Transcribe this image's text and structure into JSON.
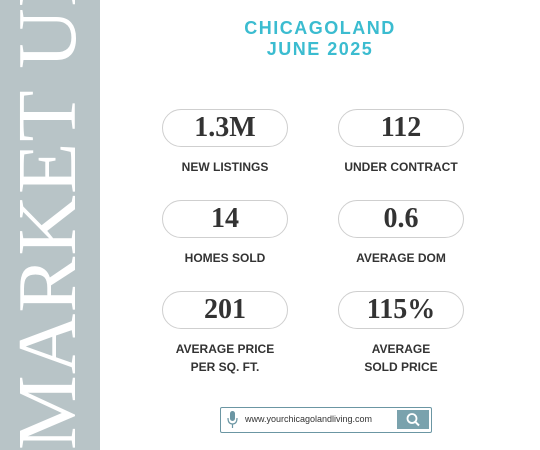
{
  "sidebar": {
    "text": "MARKET UPDATE"
  },
  "header": {
    "title": "CHICAGOLAND",
    "subtitle": "JUNE 2025"
  },
  "stats": [
    {
      "value": "1.3M",
      "label": [
        "NEW LISTINGS"
      ]
    },
    {
      "value": "112",
      "label": [
        "UNDER CONTRACT"
      ]
    },
    {
      "value": "14",
      "label": [
        "HOMES SOLD"
      ]
    },
    {
      "value": "0.6",
      "label": [
        "AVERAGE DOM"
      ]
    },
    {
      "value": "201",
      "label": [
        "AVERAGE PRICE",
        "PER SQ. FT."
      ]
    },
    {
      "value": "115%",
      "label": [
        "AVERAGE",
        "SOLD PRICE"
      ]
    }
  ],
  "search": {
    "url": "www.yourchicagolandliving.com"
  }
}
